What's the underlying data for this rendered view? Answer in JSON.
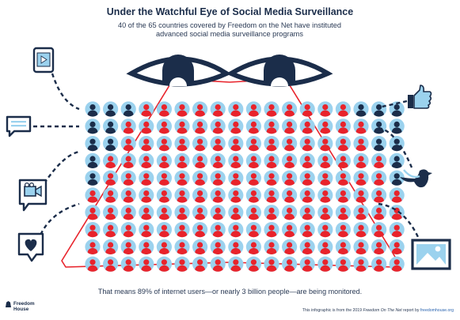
{
  "title": "Under the Watchful Eye of Social Media Surveillance",
  "subtitle": "40 of the 65 countries covered by Freedom on the Net have instituted advanced social media surveillance programs",
  "footer": "That means 89% of internet users—or nearly 3 billion people—are being monitored.",
  "logo": {
    "line1": "Freedom",
    "line2": "House"
  },
  "credit": {
    "prefix": "This infographic is from the 2019 ",
    "report": "Freedom On The Net",
    "middle": " report by ",
    "site": "freedomhouse.org"
  },
  "colors": {
    "navy": "#1b2d4a",
    "red": "#e8232b",
    "light_blue": "#9bd2ee",
    "accent_blue": "#2a64b0"
  },
  "icons": {
    "left": [
      "phone-video-icon",
      "chat-icon",
      "video-camera-icon",
      "heart-icon"
    ],
    "right": [
      "thumbs-up-icon",
      "bird-icon",
      "image-icon"
    ]
  },
  "grid": {
    "rows": 10,
    "cols": 18,
    "red_count": 160,
    "blue_count": 20
  }
}
